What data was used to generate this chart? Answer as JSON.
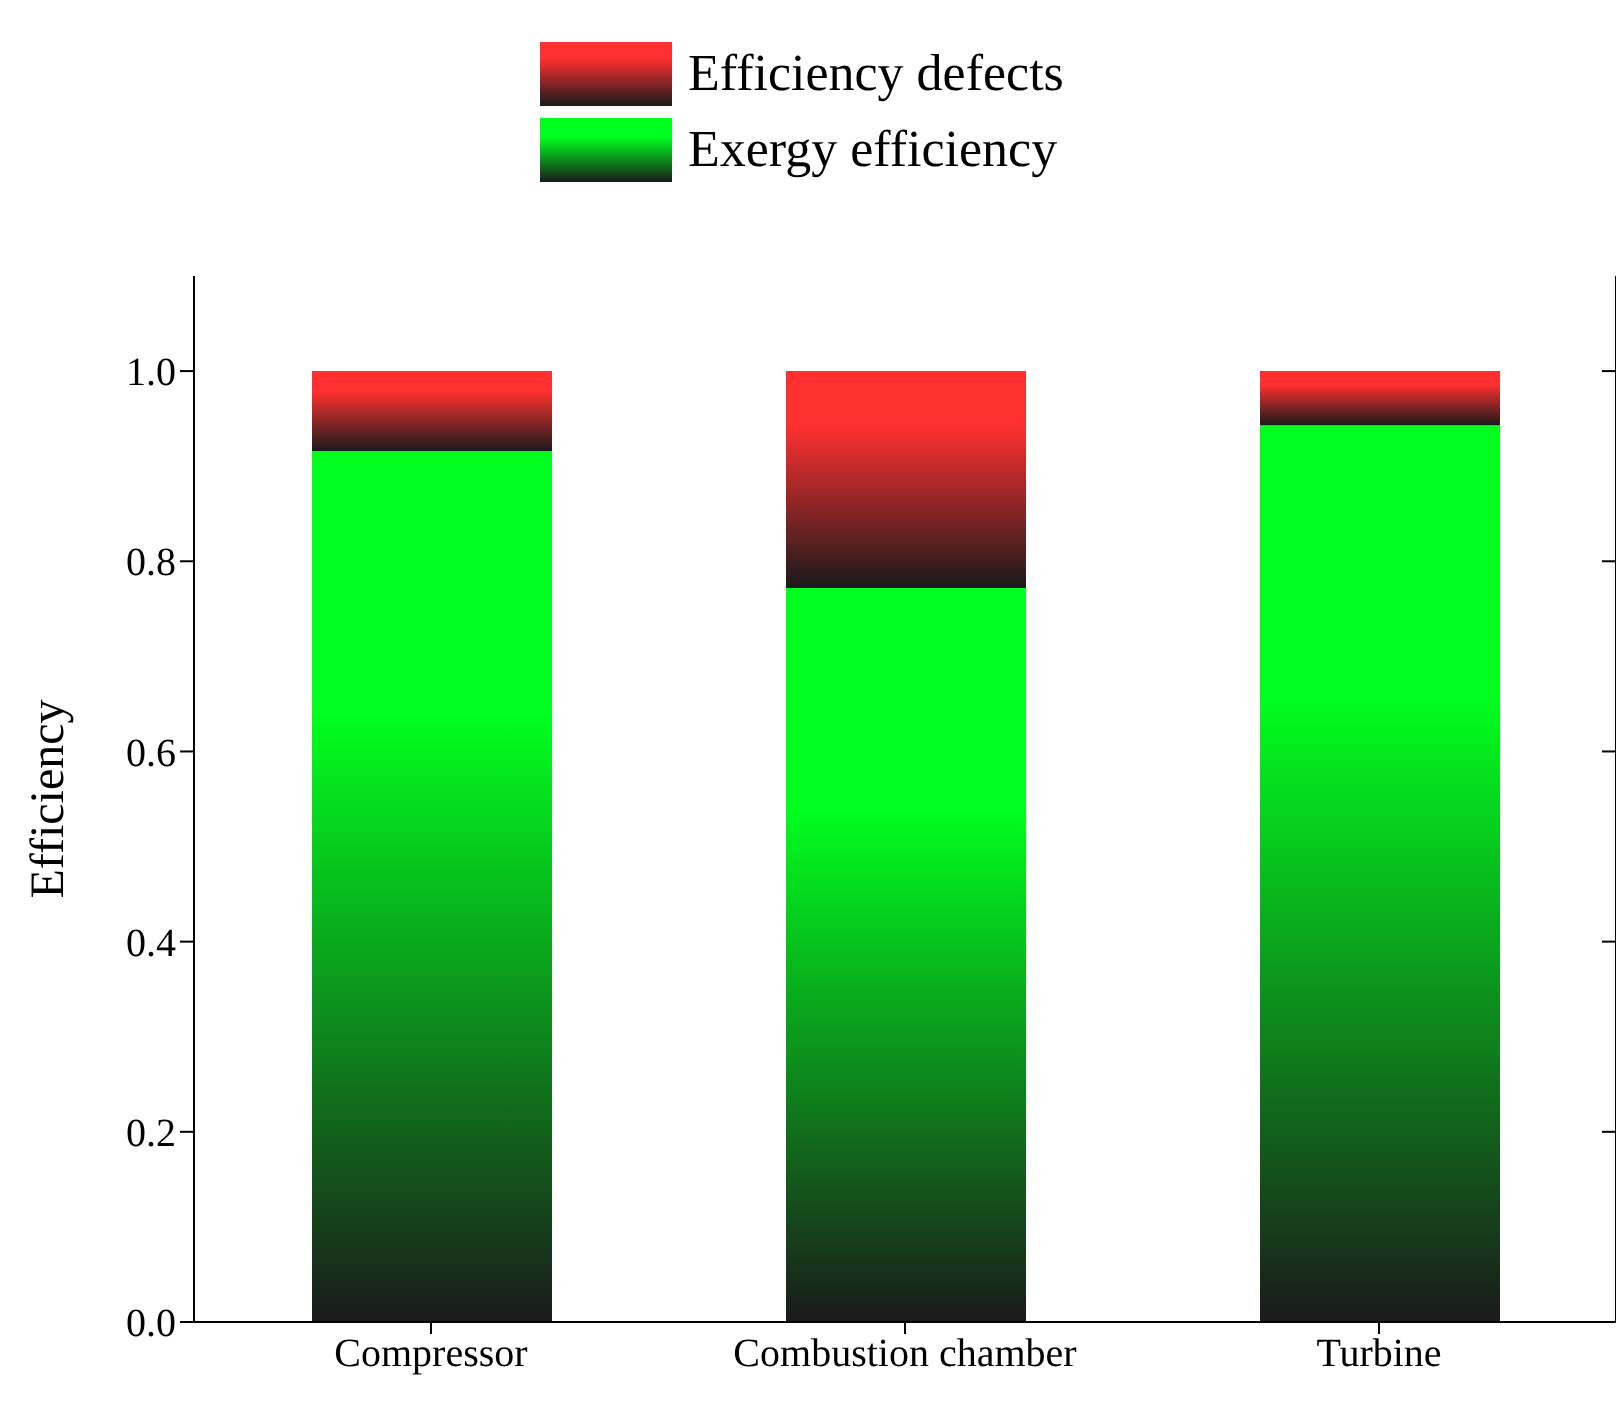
{
  "chart_data": {
    "type": "bar",
    "ylabel": "Efficiency",
    "categories": [
      "Compressor",
      "Combustion chamber",
      "Turbine"
    ],
    "stacked": true,
    "legend": "top",
    "series": [
      {
        "name": "Exergy efficiency",
        "color": "#00ff1e",
        "values": [
          0.916,
          0.772,
          0.943
        ]
      },
      {
        "name": "Efficiency defects",
        "color": "#ff3030",
        "values": [
          0.084,
          0.228,
          0.057
        ]
      }
    ],
    "ylim": [
      0,
      1.1
    ],
    "yticks": [
      {
        "value": 0,
        "label": "0.0"
      },
      {
        "value": 0.2,
        "label": "0.2"
      },
      {
        "value": 0.4,
        "label": "0.4"
      },
      {
        "value": 0.6,
        "label": "0.6"
      },
      {
        "value": 0.8,
        "label": "0.8"
      },
      {
        "value": 1,
        "label": "1.0"
      }
    ],
    "grid": false
  }
}
